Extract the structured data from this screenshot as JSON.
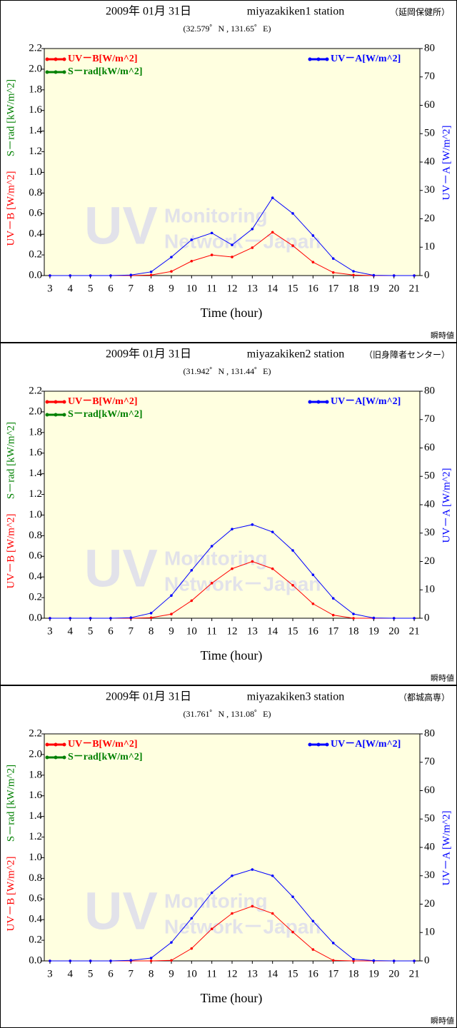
{
  "chart_data": [
    {
      "type": "line",
      "title": "2009年 01月 31日",
      "station": "miyazakiken1 station",
      "site": "（延岡保健所）",
      "coords": "(32.579゜N , 131.65゜E)",
      "note": "瞬時値",
      "watermark": [
        "UV",
        "Monitoring",
        "Network－Japan"
      ],
      "xlabel": "Time (hour)",
      "ylabel": "UV－B [W/m^2]",
      "ylabel2": "S－rad [kW/m^2]",
      "y2label": "UV－A [W/m^2]",
      "x": [
        3,
        4,
        5,
        6,
        7,
        8,
        9,
        10,
        11,
        12,
        13,
        14,
        15,
        16,
        17,
        18,
        19,
        20,
        21
      ],
      "xlim": [
        2.72,
        21.28
      ],
      "xticks": [
        3,
        4,
        5,
        6,
        7,
        8,
        9,
        10,
        11,
        12,
        13,
        14,
        15,
        16,
        17,
        18,
        19,
        20,
        21
      ],
      "ylim": [
        0,
        2.2
      ],
      "yticks": [
        {
          "value": 0,
          "label": "0.0"
        },
        {
          "value": 0.2,
          "label": "0.2"
        },
        {
          "value": 0.4,
          "label": "0.4"
        },
        {
          "value": 0.6,
          "label": "0.6"
        },
        {
          "value": 0.8,
          "label": "0.8"
        },
        {
          "value": 1,
          "label": "1.0"
        },
        {
          "value": 1.2,
          "label": "1.2"
        },
        {
          "value": 1.4,
          "label": "1.4"
        },
        {
          "value": 1.6,
          "label": "1.6"
        },
        {
          "value": 1.8,
          "label": "1.8"
        },
        {
          "value": 2,
          "label": "2.0"
        },
        {
          "value": 2.2,
          "label": "2.2"
        }
      ],
      "y2lim": [
        0,
        80
      ],
      "y2ticks": [
        0,
        10,
        20,
        30,
        40,
        50,
        60,
        70,
        80
      ],
      "series": [
        {
          "name": "UV－B[W/m^2]",
          "color": "#ff0000",
          "values": [
            0,
            0,
            0,
            0,
            0,
            0.005,
            0.04,
            0.14,
            0.2,
            0.18,
            0.27,
            0.42,
            0.29,
            0.13,
            0.03,
            0.005,
            0,
            0,
            0
          ]
        },
        {
          "name": "S－rad[kW/m^2]",
          "color": "#008000",
          "values": [
            null,
            null,
            null,
            null,
            null,
            null,
            null,
            null,
            null,
            null,
            null,
            null,
            null,
            null,
            null,
            null,
            null,
            null,
            null
          ]
        },
        {
          "name": "UV－A[W/m^2]",
          "color": "#0000ff",
          "axis": "y2",
          "values": [
            0,
            0,
            0,
            0,
            0.2,
            1.3,
            6.5,
            12.6,
            15,
            10.8,
            16.4,
            27.4,
            21.9,
            14.1,
            6,
            1.5,
            0.1,
            0,
            0
          ]
        }
      ]
    },
    {
      "type": "line",
      "title": "2009年 01月 31日",
      "station": "miyazakiken2 station",
      "site": "（旧身障者センター）",
      "coords": "(31.942゜N , 131.44゜E)",
      "note": "瞬時値",
      "watermark": [
        "UV",
        "Monitoring",
        "Network－Japan"
      ],
      "xlabel": "Time (hour)",
      "ylabel": "UV－B [W/m^2]",
      "ylabel2": "S－rad [kW/m^2]",
      "y2label": "UV－A [W/m^2]",
      "x": [
        3,
        4,
        5,
        6,
        7,
        8,
        9,
        10,
        11,
        12,
        13,
        14,
        15,
        16,
        17,
        18,
        19,
        20,
        21
      ],
      "xlim": [
        2.72,
        21.28
      ],
      "xticks": [
        3,
        4,
        5,
        6,
        7,
        8,
        9,
        10,
        11,
        12,
        13,
        14,
        15,
        16,
        17,
        18,
        19,
        20,
        21
      ],
      "ylim": [
        0,
        2.2
      ],
      "yticks": [
        {
          "value": 0,
          "label": "0.0"
        },
        {
          "value": 0.2,
          "label": "0.2"
        },
        {
          "value": 0.4,
          "label": "0.4"
        },
        {
          "value": 0.6,
          "label": "0.6"
        },
        {
          "value": 0.8,
          "label": "0.8"
        },
        {
          "value": 1,
          "label": "1.0"
        },
        {
          "value": 1.2,
          "label": "1.2"
        },
        {
          "value": 1.4,
          "label": "1.4"
        },
        {
          "value": 1.6,
          "label": "1.6"
        },
        {
          "value": 1.8,
          "label": "1.8"
        },
        {
          "value": 2,
          "label": "2.0"
        },
        {
          "value": 2.2,
          "label": "2.2"
        }
      ],
      "y2lim": [
        0,
        80
      ],
      "y2ticks": [
        0,
        10,
        20,
        30,
        40,
        50,
        60,
        70,
        80
      ],
      "series": [
        {
          "name": "UV－B[W/m^2]",
          "color": "#ff0000",
          "values": [
            0,
            0,
            0,
            0,
            0,
            0.005,
            0.04,
            0.17,
            0.34,
            0.48,
            0.55,
            0.48,
            0.32,
            0.14,
            0.03,
            0,
            0,
            0,
            0
          ]
        },
        {
          "name": "S－rad[kW/m^2]",
          "color": "#008000",
          "values": [
            null,
            null,
            null,
            null,
            null,
            null,
            null,
            null,
            null,
            null,
            null,
            null,
            null,
            null,
            null,
            null,
            null,
            null,
            null
          ]
        },
        {
          "name": "UV－A[W/m^2]",
          "color": "#0000ff",
          "axis": "y2",
          "values": [
            0,
            0,
            0,
            0,
            0.2,
            1.8,
            8,
            16.9,
            25.4,
            31.4,
            33,
            30.4,
            23.9,
            15.3,
            7,
            1.5,
            0.1,
            0,
            0
          ]
        }
      ]
    },
    {
      "type": "line",
      "title": "2009年 01月 31日",
      "station": "miyazakiken3 station",
      "site": "（都城高専）",
      "coords": "(31.761゜N , 131.08゜E)",
      "note": "瞬時値",
      "watermark": [
        "UV",
        "Monitoring",
        "Network－Japan"
      ],
      "xlabel": "Time (hour)",
      "ylabel": "UV－B [W/m^2]",
      "ylabel2": "S－rad [kW/m^2]",
      "y2label": "UV－A [W/m^2]",
      "x": [
        3,
        4,
        5,
        6,
        7,
        8,
        9,
        10,
        11,
        12,
        13,
        14,
        15,
        16,
        17,
        18,
        19,
        20,
        21
      ],
      "xlim": [
        2.72,
        21.28
      ],
      "xticks": [
        3,
        4,
        5,
        6,
        7,
        8,
        9,
        10,
        11,
        12,
        13,
        14,
        15,
        16,
        17,
        18,
        19,
        20,
        21
      ],
      "ylim": [
        0,
        2.2
      ],
      "yticks": [
        {
          "value": 0,
          "label": "0.0"
        },
        {
          "value": 0.2,
          "label": "0.2"
        },
        {
          "value": 0.4,
          "label": "0.4"
        },
        {
          "value": 0.6,
          "label": "0.6"
        },
        {
          "value": 0.8,
          "label": "0.8"
        },
        {
          "value": 1,
          "label": "1.0"
        },
        {
          "value": 1.2,
          "label": "1.2"
        },
        {
          "value": 1.4,
          "label": "1.4"
        },
        {
          "value": 1.6,
          "label": "1.6"
        },
        {
          "value": 1.8,
          "label": "1.8"
        },
        {
          "value": 2,
          "label": "2.0"
        },
        {
          "value": 2.2,
          "label": "2.2"
        }
      ],
      "y2lim": [
        0,
        80
      ],
      "y2ticks": [
        0,
        10,
        20,
        30,
        40,
        50,
        60,
        70,
        80
      ],
      "series": [
        {
          "name": "UV－B[W/m^2]",
          "color": "#ff0000",
          "values": [
            0,
            0,
            0,
            0,
            0,
            0,
            0.005,
            0.12,
            0.31,
            0.46,
            0.53,
            0.46,
            0.28,
            0.11,
            0.005,
            0,
            0,
            0,
            0
          ]
        },
        {
          "name": "S－rad[kW/m^2]",
          "color": "#008000",
          "values": [
            null,
            null,
            null,
            null,
            null,
            null,
            null,
            null,
            null,
            null,
            null,
            null,
            null,
            null,
            null,
            null,
            null,
            null,
            null
          ]
        },
        {
          "name": "UV－A[W/m^2]",
          "color": "#0000ff",
          "axis": "y2",
          "values": [
            0,
            0,
            0,
            0,
            0.2,
            1,
            6.5,
            15,
            24,
            30,
            32.2,
            30,
            22.6,
            14,
            6.3,
            0.6,
            0.1,
            0,
            0
          ]
        }
      ]
    }
  ]
}
